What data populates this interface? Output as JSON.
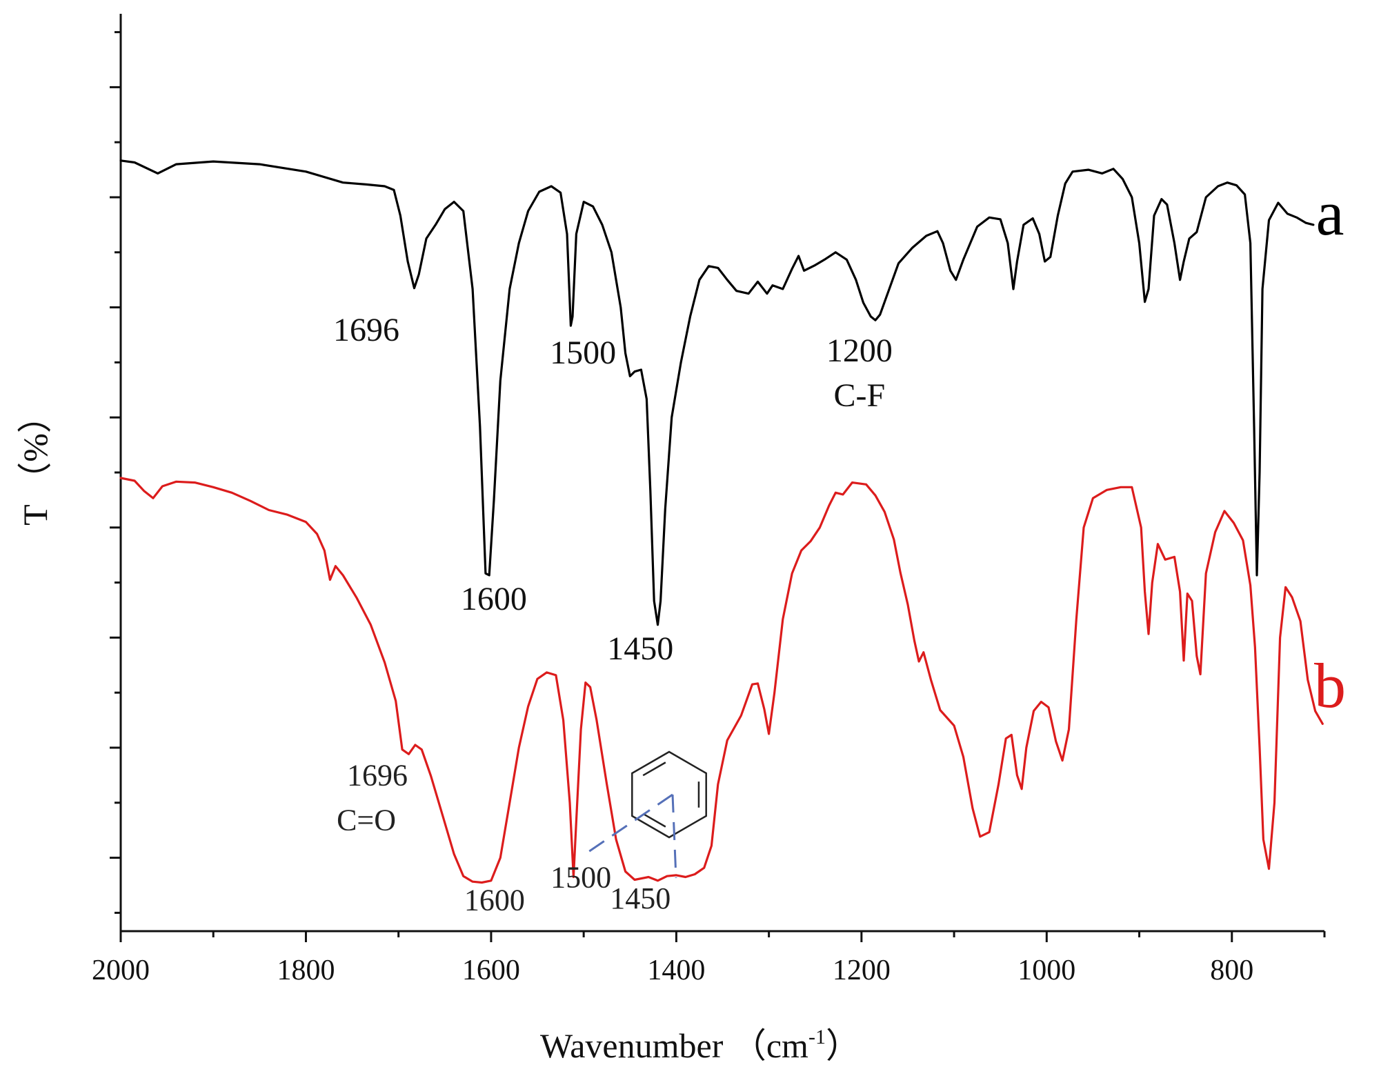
{
  "chart_data": {
    "type": "line",
    "title": "",
    "xlabel": "Wavenumber （cm",
    "xlabel_superscript": "-1",
    "xlabel_close": "）",
    "ylabel": "T （%）",
    "xlim": [
      2000,
      700
    ],
    "ylim": [
      0,
      100
    ],
    "x_ticks": [
      2000,
      1800,
      1600,
      1400,
      1200,
      1000,
      800
    ],
    "x_tick_labels": [
      "2000",
      "1800",
      "1600",
      "1400",
      "1200",
      "1000",
      "800"
    ],
    "y_major_ticks": [
      8,
      20,
      32,
      44,
      56,
      68,
      80,
      92
    ],
    "y_minor_ticks": [
      2,
      14,
      26,
      38,
      50,
      62,
      74,
      86,
      98
    ],
    "y_tick_labels_shown": false,
    "series": [
      {
        "name": "a",
        "color": "#000000",
        "points": [
          [
            2000,
            84
          ],
          [
            1985,
            83.8
          ],
          [
            1960,
            82.6
          ],
          [
            1940,
            83.6
          ],
          [
            1900,
            83.9
          ],
          [
            1850,
            83.6
          ],
          [
            1800,
            82.8
          ],
          [
            1760,
            81.6
          ],
          [
            1735,
            81.4
          ],
          [
            1715,
            81.2
          ],
          [
            1705,
            80.8
          ],
          [
            1698,
            78
          ],
          [
            1690,
            73
          ],
          [
            1683,
            70.1
          ],
          [
            1678,
            71.6
          ],
          [
            1670,
            75.5
          ],
          [
            1660,
            77
          ],
          [
            1650,
            78.7
          ],
          [
            1640,
            79.5
          ],
          [
            1630,
            78.5
          ],
          [
            1620,
            70
          ],
          [
            1612,
            55
          ],
          [
            1606,
            39
          ],
          [
            1602,
            38.8
          ],
          [
            1597,
            47
          ],
          [
            1590,
            60
          ],
          [
            1580,
            70
          ],
          [
            1570,
            75
          ],
          [
            1560,
            78.5
          ],
          [
            1548,
            80.6
          ],
          [
            1535,
            81.2
          ],
          [
            1525,
            80.5
          ],
          [
            1518,
            76
          ],
          [
            1514,
            66
          ],
          [
            1512,
            67
          ],
          [
            1508,
            76
          ],
          [
            1500,
            79.5
          ],
          [
            1490,
            79
          ],
          [
            1480,
            77
          ],
          [
            1470,
            74
          ],
          [
            1460,
            68
          ],
          [
            1455,
            63
          ],
          [
            1450,
            60.5
          ],
          [
            1445,
            61
          ],
          [
            1438,
            61.2
          ],
          [
            1432,
            58
          ],
          [
            1428,
            48
          ],
          [
            1424,
            36
          ],
          [
            1420,
            33.4
          ],
          [
            1417,
            36
          ],
          [
            1412,
            46
          ],
          [
            1405,
            56
          ],
          [
            1395,
            62
          ],
          [
            1385,
            67
          ],
          [
            1375,
            71
          ],
          [
            1365,
            72.5
          ],
          [
            1355,
            72.3
          ],
          [
            1345,
            71
          ],
          [
            1335,
            69.8
          ],
          [
            1322,
            69.5
          ],
          [
            1312,
            70.8
          ],
          [
            1302,
            69.5
          ],
          [
            1296,
            70.4
          ],
          [
            1285,
            70
          ],
          [
            1275,
            72.2
          ],
          [
            1268,
            73.6
          ],
          [
            1262,
            72
          ],
          [
            1250,
            72.6
          ],
          [
            1240,
            73.2
          ],
          [
            1228,
            74
          ],
          [
            1216,
            73.2
          ],
          [
            1206,
            71
          ],
          [
            1198,
            68.5
          ],
          [
            1190,
            67
          ],
          [
            1185,
            66.6
          ],
          [
            1180,
            67.2
          ],
          [
            1170,
            70
          ],
          [
            1160,
            72.8
          ],
          [
            1145,
            74.5
          ],
          [
            1130,
            75.8
          ],
          [
            1118,
            76.3
          ],
          [
            1112,
            75
          ],
          [
            1104,
            72
          ],
          [
            1098,
            71
          ],
          [
            1090,
            73.2
          ],
          [
            1075,
            76.8
          ],
          [
            1062,
            77.8
          ],
          [
            1050,
            77.6
          ],
          [
            1042,
            75
          ],
          [
            1036,
            70
          ],
          [
            1032,
            73
          ],
          [
            1025,
            77
          ],
          [
            1015,
            77.7
          ],
          [
            1008,
            76
          ],
          [
            1002,
            73
          ],
          [
            996,
            73.5
          ],
          [
            988,
            78
          ],
          [
            980,
            81.5
          ],
          [
            972,
            82.8
          ],
          [
            955,
            83
          ],
          [
            940,
            82.6
          ],
          [
            928,
            83.1
          ],
          [
            918,
            82
          ],
          [
            908,
            80
          ],
          [
            900,
            75
          ],
          [
            894,
            68.6
          ],
          [
            890,
            70
          ],
          [
            884,
            78
          ],
          [
            876,
            79.8
          ],
          [
            870,
            79.2
          ],
          [
            862,
            75
          ],
          [
            856,
            71
          ],
          [
            852,
            73
          ],
          [
            846,
            75.5
          ],
          [
            838,
            76.2
          ],
          [
            828,
            80
          ],
          [
            815,
            81.2
          ],
          [
            805,
            81.6
          ],
          [
            795,
            81.3
          ],
          [
            786,
            80.3
          ],
          [
            780,
            75
          ],
          [
            776,
            55
          ],
          [
            773,
            38.8
          ],
          [
            770,
            50
          ],
          [
            767,
            70
          ],
          [
            760,
            77.5
          ],
          [
            750,
            79.4
          ],
          [
            740,
            78.2
          ],
          [
            730,
            77.8
          ],
          [
            720,
            77.2
          ],
          [
            712,
            77
          ]
        ]
      },
      {
        "name": "b",
        "color": "#dc1c1c",
        "points": [
          [
            2000,
            49.4
          ],
          [
            1985,
            49.1
          ],
          [
            1975,
            48
          ],
          [
            1965,
            47.2
          ],
          [
            1955,
            48.5
          ],
          [
            1940,
            49
          ],
          [
            1920,
            48.9
          ],
          [
            1900,
            48.4
          ],
          [
            1880,
            47.8
          ],
          [
            1860,
            46.9
          ],
          [
            1840,
            45.9
          ],
          [
            1820,
            45.4
          ],
          [
            1800,
            44.6
          ],
          [
            1788,
            43.3
          ],
          [
            1780,
            41.5
          ],
          [
            1774,
            38.3
          ],
          [
            1768,
            39.8
          ],
          [
            1760,
            38.8
          ],
          [
            1745,
            36.3
          ],
          [
            1730,
            33.4
          ],
          [
            1715,
            29.3
          ],
          [
            1703,
            25.1
          ],
          [
            1696,
            19.8
          ],
          [
            1689,
            19.3
          ],
          [
            1682,
            20.3
          ],
          [
            1675,
            19.8
          ],
          [
            1665,
            16.9
          ],
          [
            1652,
            12.5
          ],
          [
            1640,
            8.4
          ],
          [
            1630,
            6
          ],
          [
            1620,
            5.4
          ],
          [
            1610,
            5.3
          ],
          [
            1600,
            5.5
          ],
          [
            1590,
            8
          ],
          [
            1580,
            14
          ],
          [
            1570,
            20
          ],
          [
            1560,
            24.5
          ],
          [
            1550,
            27.5
          ],
          [
            1540,
            28.2
          ],
          [
            1530,
            27.9
          ],
          [
            1522,
            23
          ],
          [
            1515,
            14
          ],
          [
            1511,
            5.9
          ],
          [
            1508,
            12
          ],
          [
            1503,
            22
          ],
          [
            1498,
            27.1
          ],
          [
            1493,
            26.6
          ],
          [
            1486,
            23
          ],
          [
            1475,
            16
          ],
          [
            1465,
            10
          ],
          [
            1455,
            6.5
          ],
          [
            1445,
            5.6
          ],
          [
            1430,
            5.9
          ],
          [
            1420,
            5.5
          ],
          [
            1410,
            6
          ],
          [
            1400,
            6.1
          ],
          [
            1390,
            5.9
          ],
          [
            1380,
            6.2
          ],
          [
            1370,
            6.9
          ],
          [
            1362,
            9.3
          ],
          [
            1355,
            16
          ],
          [
            1345,
            20.8
          ],
          [
            1330,
            23.5
          ],
          [
            1318,
            26.9
          ],
          [
            1312,
            27
          ],
          [
            1305,
            24.2
          ],
          [
            1300,
            21.5
          ],
          [
            1294,
            26
          ],
          [
            1285,
            34
          ],
          [
            1275,
            39
          ],
          [
            1265,
            41.5
          ],
          [
            1255,
            42.5
          ],
          [
            1245,
            44
          ],
          [
            1235,
            46.4
          ],
          [
            1228,
            47.8
          ],
          [
            1220,
            47.6
          ],
          [
            1210,
            48.9
          ],
          [
            1195,
            48.7
          ],
          [
            1185,
            47.5
          ],
          [
            1175,
            45.7
          ],
          [
            1165,
            42.7
          ],
          [
            1158,
            39.1
          ],
          [
            1150,
            35.6
          ],
          [
            1143,
            31.7
          ],
          [
            1138,
            29.4
          ],
          [
            1133,
            30.4
          ],
          [
            1125,
            27.4
          ],
          [
            1115,
            24.1
          ],
          [
            1100,
            22.4
          ],
          [
            1090,
            19
          ],
          [
            1080,
            13.4
          ],
          [
            1072,
            10.3
          ],
          [
            1062,
            10.8
          ],
          [
            1052,
            16
          ],
          [
            1044,
            21
          ],
          [
            1038,
            21.4
          ],
          [
            1032,
            17
          ],
          [
            1027,
            15.5
          ],
          [
            1022,
            20
          ],
          [
            1014,
            24
          ],
          [
            1006,
            25
          ],
          [
            998,
            24.4
          ],
          [
            990,
            20.7
          ],
          [
            983,
            18.6
          ],
          [
            976,
            22
          ],
          [
            968,
            34
          ],
          [
            960,
            44
          ],
          [
            950,
            47.2
          ],
          [
            935,
            48.1
          ],
          [
            920,
            48.4
          ],
          [
            908,
            48.4
          ],
          [
            898,
            44
          ],
          [
            894,
            37
          ],
          [
            890,
            32.4
          ],
          [
            886,
            38
          ],
          [
            880,
            42.2
          ],
          [
            872,
            40.5
          ],
          [
            862,
            40.8
          ],
          [
            856,
            37
          ],
          [
            852,
            29.5
          ],
          [
            848,
            36.8
          ],
          [
            843,
            36
          ],
          [
            838,
            30
          ],
          [
            834,
            28
          ],
          [
            828,
            39
          ],
          [
            818,
            43.5
          ],
          [
            808,
            45.8
          ],
          [
            798,
            44.5
          ],
          [
            788,
            42.6
          ],
          [
            780,
            37.7
          ],
          [
            775,
            31
          ],
          [
            770,
            20
          ],
          [
            766,
            10
          ],
          [
            760,
            6.8
          ],
          [
            754,
            14
          ],
          [
            748,
            32
          ],
          [
            742,
            37.5
          ],
          [
            735,
            36.4
          ],
          [
            726,
            33.8
          ],
          [
            718,
            27.4
          ],
          [
            710,
            24
          ],
          [
            702,
            22.6
          ]
        ]
      }
    ],
    "annotations": [
      {
        "series": "a",
        "text": "1696",
        "x": 1696,
        "y": 70
      },
      {
        "series": "a",
        "text": "1600",
        "x": 1600,
        "y": 38.8
      },
      {
        "series": "a",
        "text": "1500",
        "x": 1500,
        "y": 66
      },
      {
        "series": "a",
        "text": "1450",
        "x": 1450,
        "y": 33.4
      },
      {
        "series": "a",
        "text": "1200",
        "x": 1200,
        "y": 66.6
      },
      {
        "series": "a",
        "text": "C-F",
        "x": 1200,
        "y": 66.6
      },
      {
        "series": "b",
        "text": "1696",
        "x": 1696,
        "y": 19.3
      },
      {
        "series": "b",
        "text": "C=O",
        "x": 1696,
        "y": 19.3
      },
      {
        "series": "b",
        "text": "1600",
        "x": 1600,
        "y": 5.3
      },
      {
        "series": "b",
        "text": "1500",
        "x": 1500,
        "y": 5.9
      },
      {
        "series": "b",
        "text": "1450",
        "x": 1450,
        "y": 5.5
      }
    ],
    "inset": "benzene ring structure with dashed lines to the 1500 and 1450 labels",
    "grid": false,
    "legend": "series labels a and b at right end of each curve"
  }
}
